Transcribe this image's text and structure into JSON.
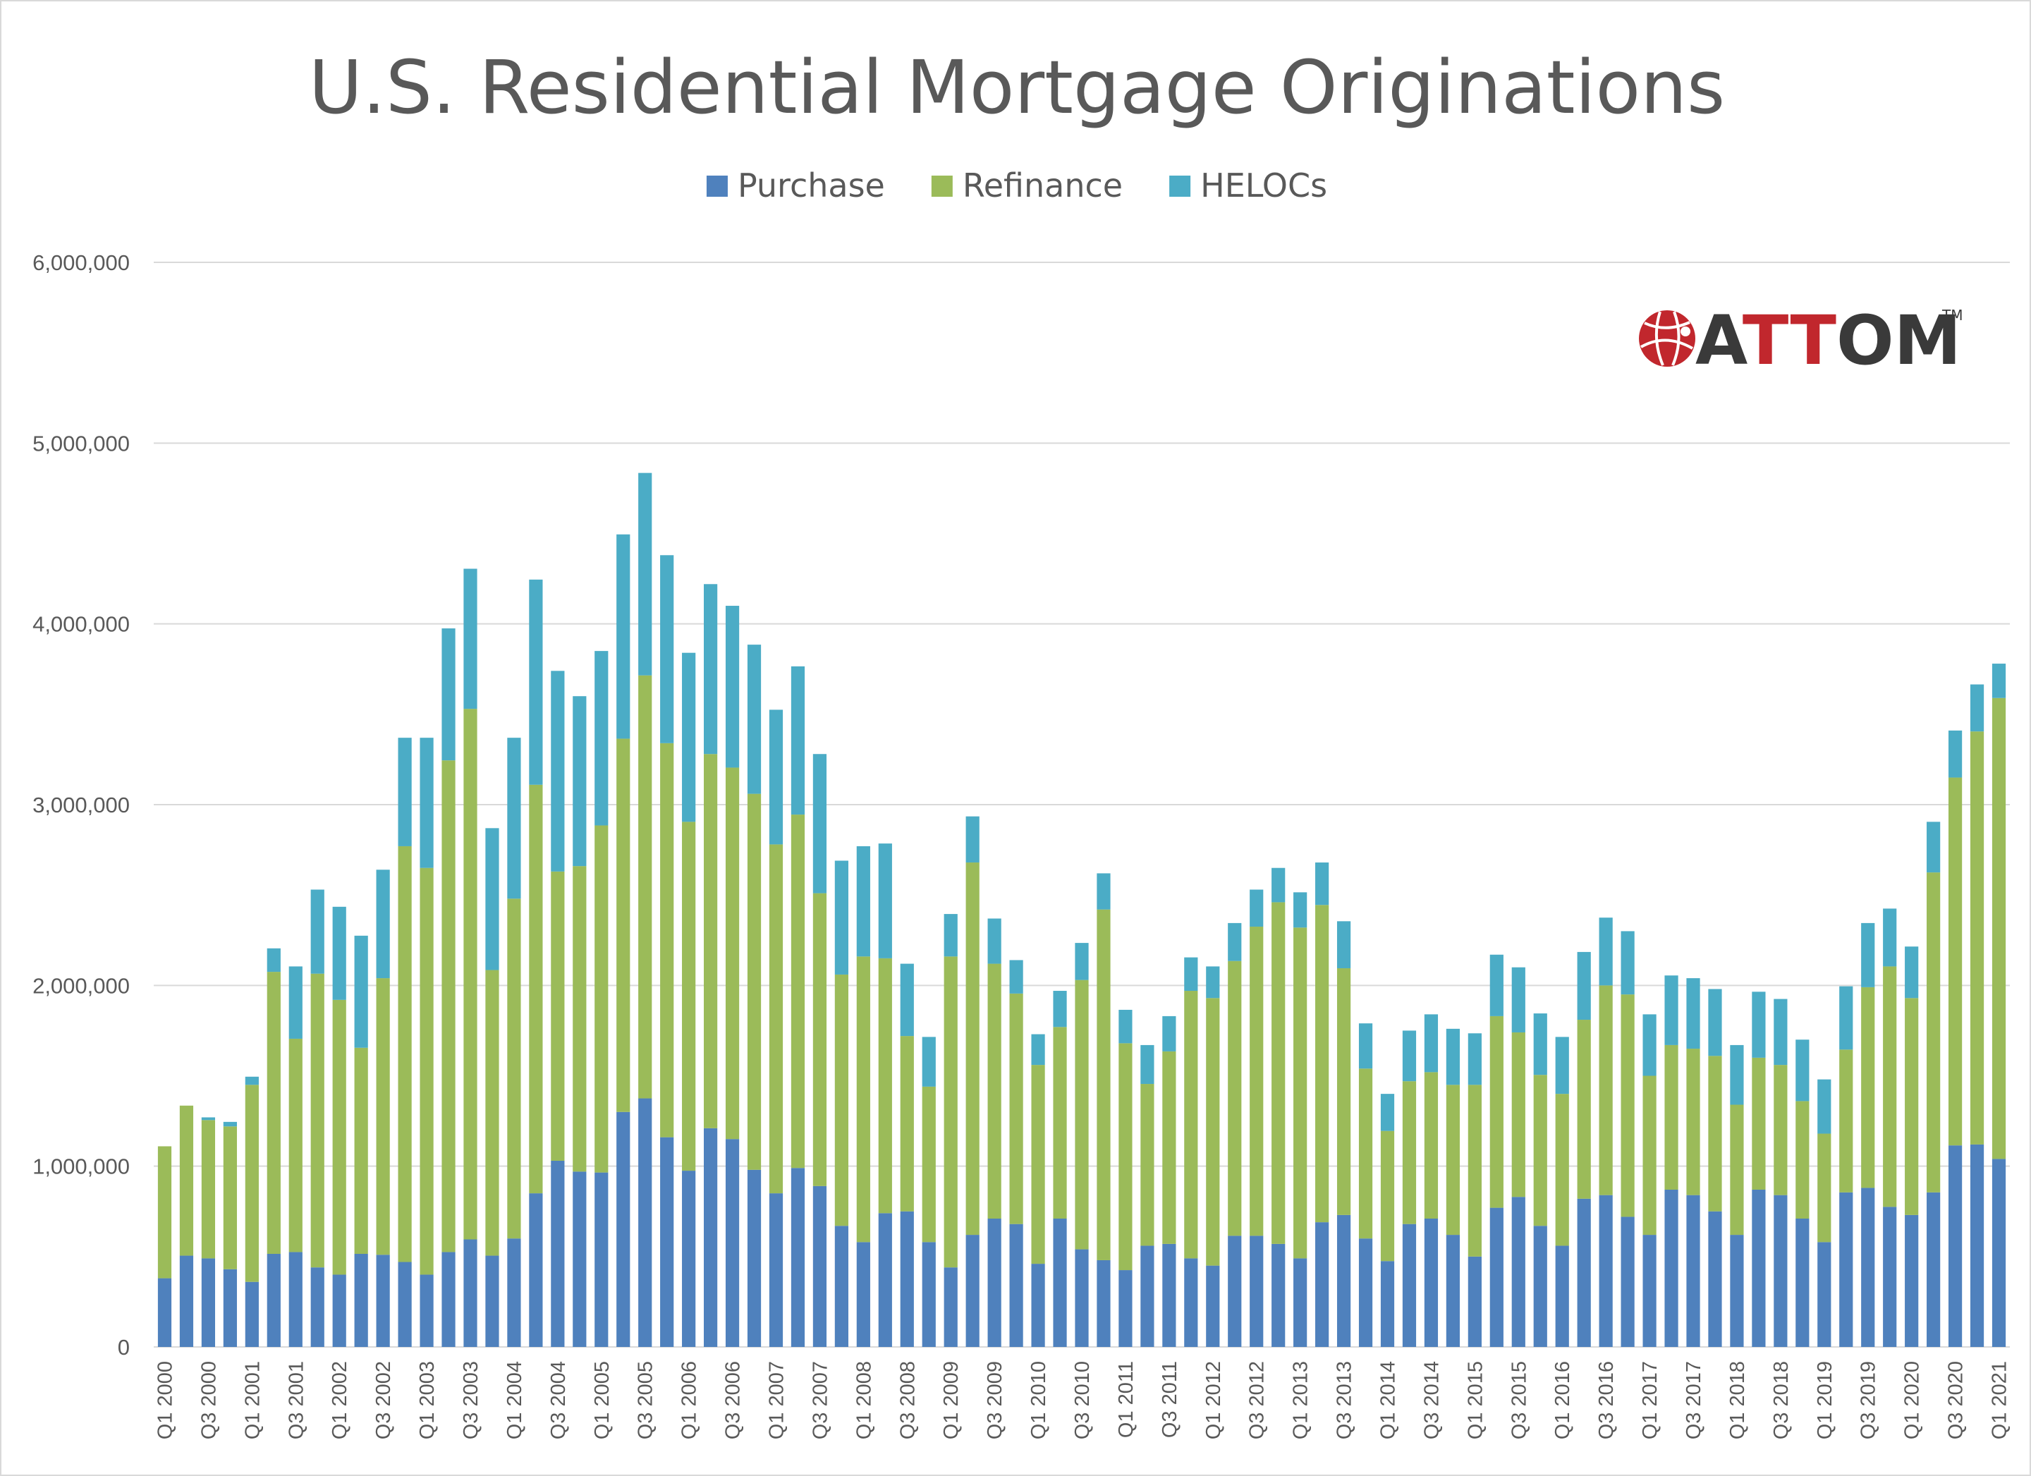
{
  "chart_data": {
    "type": "bar",
    "stacked": true,
    "title": "U.S. Residential Mortgage Originations",
    "xlabel": "",
    "ylabel": "",
    "ylim": [
      0,
      6000000
    ],
    "yticks": [
      "0",
      "1,000,000",
      "2,000,000",
      "3,000,000",
      "4,000,000",
      "5,000,000",
      "6,000,000"
    ],
    "grid": true,
    "legend_position": "top",
    "categories": [
      "Q1 2000",
      "Q2 2000",
      "Q3 2000",
      "Q4 2000",
      "Q1 2001",
      "Q2 2001",
      "Q3 2001",
      "Q4 2001",
      "Q1 2002",
      "Q2 2002",
      "Q3 2002",
      "Q4 2002",
      "Q1 2003",
      "Q2 2003",
      "Q3 2003",
      "Q4 2003",
      "Q1 2004",
      "Q2 2004",
      "Q3 2004",
      "Q4 2004",
      "Q1 2005",
      "Q2 2005",
      "Q3 2005",
      "Q4 2005",
      "Q1 2006",
      "Q2 2006",
      "Q3 2006",
      "Q4 2006",
      "Q1 2007",
      "Q2 2007",
      "Q3 2007",
      "Q4 2007",
      "Q1 2008",
      "Q2 2008",
      "Q3 2008",
      "Q4 2008",
      "Q1 2009",
      "Q2 2009",
      "Q3 2009",
      "Q4 2009",
      "Q1 2010",
      "Q2 2010",
      "Q3 2010",
      "Q4 2010",
      "Q1 2011",
      "Q2 2011",
      "Q3 2011",
      "Q4 2011",
      "Q1 2012",
      "Q2 2012",
      "Q3 2012",
      "Q4 2012",
      "Q1 2013",
      "Q2 2013",
      "Q3 2013",
      "Q4 2013",
      "Q1 2014",
      "Q2 2014",
      "Q3 2014",
      "Q4 2014",
      "Q1 2015",
      "Q2 2015",
      "Q3 2015",
      "Q4 2015",
      "Q1 2016",
      "Q2 2016",
      "Q3 2016",
      "Q4 2016",
      "Q1 2017",
      "Q2 2017",
      "Q3 2017",
      "Q4 2017",
      "Q1 2018",
      "Q2 2018",
      "Q3 2018",
      "Q4 2018",
      "Q1 2019",
      "Q2 2019",
      "Q3 2019",
      "Q4 2019",
      "Q1 2020",
      "Q2 2020",
      "Q3 2020",
      "Q4 2020",
      "Q1 2021"
    ],
    "xtick_labels": [
      "Q1 2000",
      "Q3 2000",
      "Q1 2001",
      "Q3 2001",
      "Q1 2002",
      "Q3 2002",
      "Q1 2003",
      "Q3 2003",
      "Q1 2004",
      "Q3 2004",
      "Q1 2005",
      "Q3 2005",
      "Q1 2006",
      "Q3 2006",
      "Q1 2007",
      "Q3 2007",
      "Q1 2008",
      "Q3 2008",
      "Q1 2009",
      "Q3 2009",
      "Q1 2010",
      "Q3 2010",
      "Q1 2011",
      "Q3 2011",
      "Q1 2012",
      "Q3 2012",
      "Q1 2013",
      "Q3 2013",
      "Q1 2014",
      "Q3 2014",
      "Q1 2015",
      "Q3 2015",
      "Q1 2016",
      "Q3 2016",
      "Q1 2017",
      "Q3 2017",
      "Q1 2018",
      "Q3 2018",
      "Q1 2019",
      "Q3 2019",
      "Q1 2020",
      "Q3 2020",
      "Q1 2021"
    ],
    "series": [
      {
        "name": "Purchase",
        "color": "#4f81bd",
        "values": [
          380000,
          505000,
          490000,
          430000,
          360000,
          515000,
          525000,
          440000,
          400000,
          515000,
          510000,
          470000,
          400000,
          525000,
          595000,
          505000,
          600000,
          850000,
          1030000,
          970000,
          965000,
          1300000,
          1375000,
          1160000,
          975000,
          1210000,
          1150000,
          980000,
          850000,
          990000,
          890000,
          670000,
          580000,
          740000,
          750000,
          580000,
          440000,
          620000,
          710000,
          680000,
          460000,
          710000,
          540000,
          480000,
          425000,
          560000,
          570000,
          490000,
          450000,
          615000,
          615000,
          570000,
          490000,
          690000,
          730000,
          600000,
          475000,
          680000,
          710000,
          620000,
          500000,
          770000,
          830000,
          670000,
          560000,
          820000,
          840000,
          720000,
          620000,
          870000,
          840000,
          750000,
          620000,
          870000,
          840000,
          710000,
          580000,
          855000,
          880000,
          775000,
          730000,
          855000,
          1115000,
          1120000,
          1040000
        ]
      },
      {
        "name": "Refinance",
        "color": "#9bbb59",
        "values": [
          730000,
          830000,
          765000,
          790000,
          1090000,
          1560000,
          1180000,
          1625000,
          1520000,
          1140000,
          1530000,
          2300000,
          2250000,
          2720000,
          2935000,
          1580000,
          1880000,
          2260000,
          1600000,
          1690000,
          1920000,
          2065000,
          2340000,
          2180000,
          1930000,
          2070000,
          2055000,
          2080000,
          1930000,
          1955000,
          1620000,
          1390000,
          1580000,
          1410000,
          970000,
          860000,
          1720000,
          2060000,
          1410000,
          1275000,
          1100000,
          1060000,
          1490000,
          1940000,
          1255000,
          895000,
          1065000,
          1480000,
          1480000,
          1520000,
          1710000,
          1890000,
          1830000,
          1755000,
          1365000,
          940000,
          720000,
          790000,
          810000,
          830000,
          950000,
          1060000,
          910000,
          835000,
          840000,
          990000,
          1160000,
          1230000,
          880000,
          800000,
          810000,
          860000,
          720000,
          730000,
          720000,
          650000,
          600000,
          790000,
          1110000,
          1330000,
          1200000,
          1770000,
          2035000,
          2285000,
          2550000
        ]
      },
      {
        "name": "HELOCs",
        "color": "#4bacc6",
        "values": [
          0,
          0,
          15000,
          25000,
          45000,
          130000,
          400000,
          465000,
          515000,
          620000,
          600000,
          600000,
          720000,
          730000,
          775000,
          785000,
          890000,
          1135000,
          1110000,
          940000,
          965000,
          1130000,
          1120000,
          1040000,
          935000,
          940000,
          895000,
          825000,
          745000,
          820000,
          770000,
          630000,
          610000,
          635000,
          400000,
          275000,
          235000,
          255000,
          250000,
          185000,
          170000,
          200000,
          205000,
          200000,
          185000,
          215000,
          195000,
          185000,
          175000,
          210000,
          205000,
          190000,
          195000,
          235000,
          260000,
          250000,
          205000,
          280000,
          320000,
          310000,
          285000,
          340000,
          360000,
          340000,
          315000,
          375000,
          375000,
          350000,
          340000,
          385000,
          390000,
          370000,
          330000,
          365000,
          365000,
          340000,
          300000,
          350000,
          355000,
          320000,
          285000,
          280000,
          260000,
          260000,
          190000
        ]
      }
    ]
  },
  "logo": {
    "text": "ATTOM",
    "trademark": "TM"
  }
}
